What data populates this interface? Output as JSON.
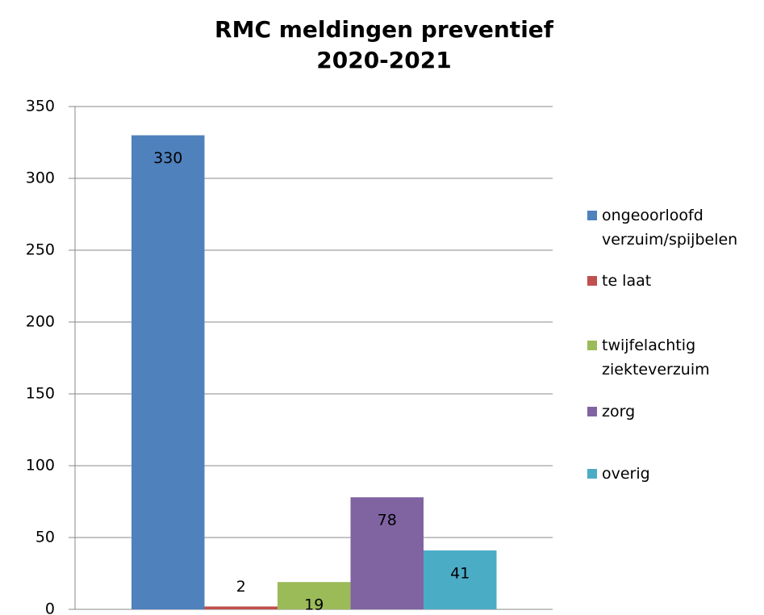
{
  "chart_data": {
    "type": "bar",
    "title": [
      "RMC meldingen preventief",
      "2020-2021"
    ],
    "series": [
      {
        "name": "ongeoorloofd verzuim/spijbelen",
        "color": "#4f81bd",
        "values": [
          330
        ]
      },
      {
        "name": "te laat",
        "color": "#c0504d",
        "values": [
          2
        ]
      },
      {
        "name": "twijfelachtig ziekteverzuim",
        "color": "#9bbb59",
        "values": [
          19
        ]
      },
      {
        "name": "zorg",
        "color": "#8064a2",
        "values": [
          78
        ]
      },
      {
        "name": "overig",
        "color": "#4bacc6",
        "values": [
          41
        ]
      }
    ],
    "ylim": [
      0,
      350
    ],
    "yticks": [
      0,
      50,
      100,
      150,
      200,
      250,
      300,
      350
    ],
    "grid": true,
    "legend": "right"
  }
}
